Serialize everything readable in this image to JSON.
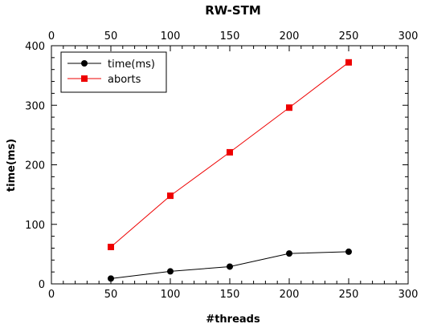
{
  "chart_data": {
    "type": "line",
    "title": "RW-STM",
    "xlabel": "#threads",
    "ylabel": "time(ms)",
    "xlim": [
      0,
      300
    ],
    "ylim": [
      0,
      400
    ],
    "x_ticks": [
      0,
      50,
      100,
      150,
      200,
      250,
      300
    ],
    "y_ticks": [
      0,
      100,
      200,
      300,
      400
    ],
    "x_ticks_top": true,
    "grid": false,
    "legend_position": "top-left",
    "series": [
      {
        "name": "time(ms)",
        "color": "#000000",
        "marker": "circle",
        "x": [
          50,
          100,
          150,
          200,
          250
        ],
        "y": [
          9,
          21,
          29,
          51,
          54
        ]
      },
      {
        "name": "aborts",
        "color": "#ee0000",
        "marker": "square",
        "x": [
          50,
          100,
          150,
          200,
          250
        ],
        "y": [
          62,
          148,
          221,
          296,
          372
        ]
      }
    ]
  }
}
